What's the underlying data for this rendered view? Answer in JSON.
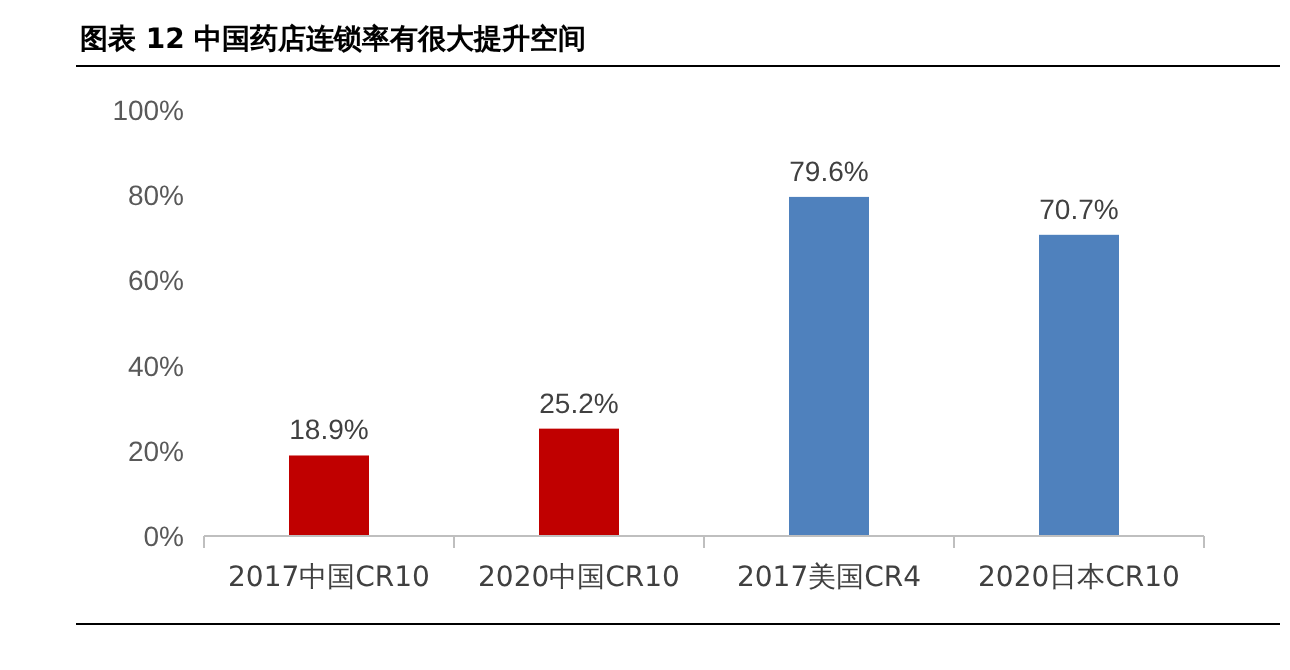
{
  "chart_data": {
    "type": "bar",
    "title": "图表 12  中国药店连锁率有很大提升空间",
    "categories": [
      "2017中国CR10",
      "2020中国CR10",
      "2017美国CR4",
      "2020日本CR10"
    ],
    "values": [
      18.9,
      25.2,
      79.6,
      70.7
    ],
    "colors": [
      "#c00000",
      "#c00000",
      "#4f81bd",
      "#4f81bd"
    ],
    "value_labels": [
      "18.9%",
      "25.2%",
      "79.6%",
      "70.7%"
    ],
    "ylim": [
      0,
      100
    ],
    "yticks": [
      {
        "value": 0,
        "label": "0%"
      },
      {
        "value": 20,
        "label": "20%"
      },
      {
        "value": 40,
        "label": "40%"
      },
      {
        "value": 60,
        "label": "60%"
      },
      {
        "value": 80,
        "label": "80%"
      },
      {
        "value": 100,
        "label": "100%"
      }
    ],
    "grid": false
  }
}
